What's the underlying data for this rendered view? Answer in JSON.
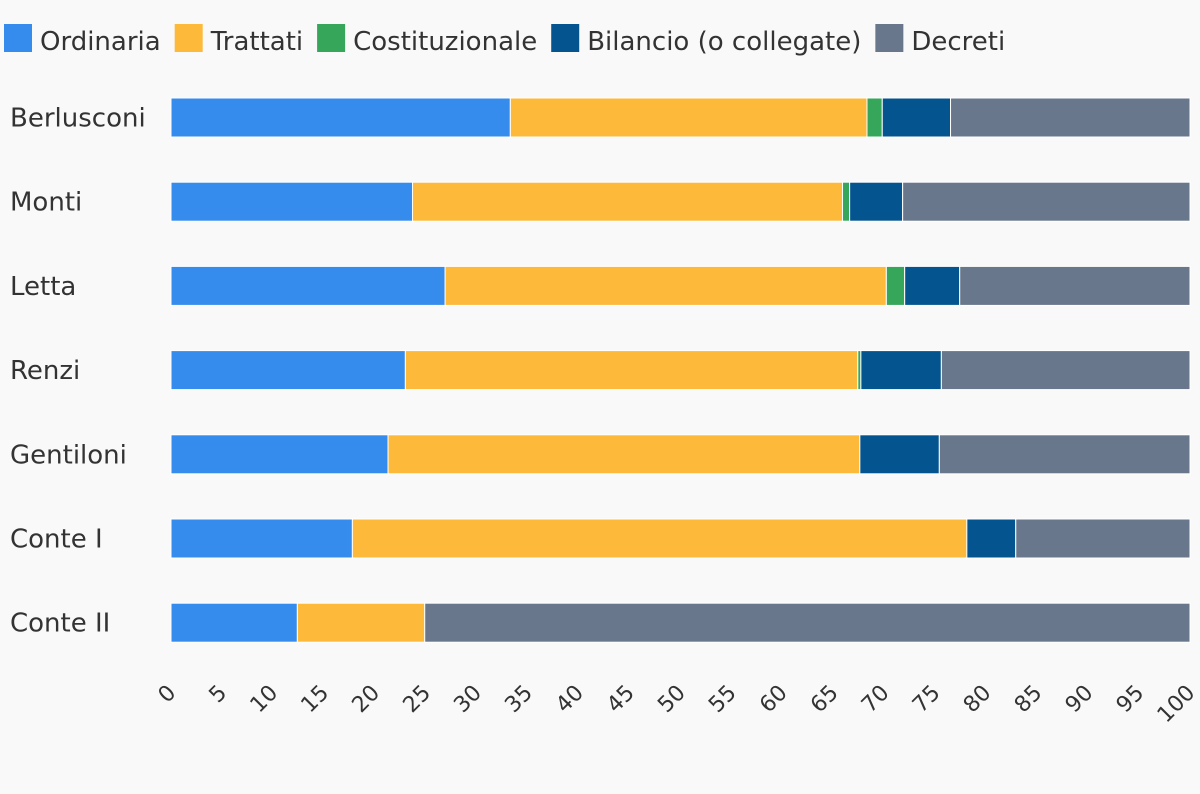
{
  "chart_data": {
    "type": "bar",
    "orientation": "horizontal",
    "stacked": true,
    "title": "",
    "xlabel": "",
    "ylabel": "",
    "xlim": [
      0,
      100
    ],
    "x_ticks": [
      0,
      5,
      10,
      15,
      20,
      25,
      30,
      35,
      40,
      45,
      50,
      55,
      60,
      65,
      70,
      75,
      80,
      85,
      90,
      95,
      100
    ],
    "grid": false,
    "legend_position": "top",
    "categories": [
      "Berlusconi",
      "Monti",
      "Letta",
      "Renzi",
      "Gentiloni",
      "Conte I",
      "Conte II"
    ],
    "series": [
      {
        "name": "Ordinaria",
        "color": "#368ced",
        "values": [
          33.3,
          23.7,
          26.9,
          23.0,
          21.3,
          17.8,
          12.4
        ]
      },
      {
        "name": "Trattati",
        "color": "#fdb93a",
        "values": [
          35.0,
          42.2,
          43.3,
          44.4,
          46.3,
          60.3,
          12.5
        ]
      },
      {
        "name": "Costituzionale",
        "color": "#35a65a",
        "values": [
          1.5,
          0.7,
          1.8,
          0.3,
          0.0,
          0.0,
          0.0
        ]
      },
      {
        "name": "Bilancio (o collegate)",
        "color": "#04558f",
        "values": [
          6.7,
          5.2,
          5.4,
          7.9,
          7.8,
          4.8,
          0.0
        ]
      },
      {
        "name": "Decreti",
        "color": "#68778c",
        "values": [
          23.5,
          28.2,
          22.6,
          24.4,
          24.6,
          17.1,
          75.1
        ]
      }
    ]
  }
}
